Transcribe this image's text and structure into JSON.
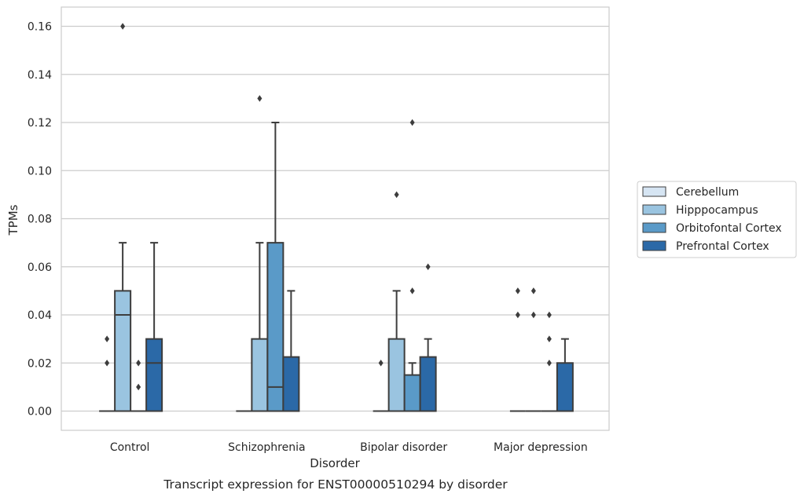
{
  "chart_data": {
    "type": "box",
    "caption": "Transcript expression for ENST00000510294 by disorder",
    "xlabel": "Disorder",
    "ylabel": "TPMs",
    "ylim": [
      -0.008,
      0.168
    ],
    "yticks": [
      0.0,
      0.02,
      0.04,
      0.06,
      0.08,
      0.1,
      0.12,
      0.14,
      0.16
    ],
    "ytick_labels": [
      "0.00",
      "0.02",
      "0.04",
      "0.06",
      "0.08",
      "0.10",
      "0.12",
      "0.14",
      "0.16"
    ],
    "grid": "horizontal",
    "legend_position": "right",
    "categories": [
      "Control",
      "Schizophrenia",
      "Bipolar disorder",
      "Major depression"
    ],
    "series": [
      {
        "name": "Cerebellum",
        "color": "#d6e5f3",
        "boxes": [
          {
            "min": 0,
            "q1": 0,
            "median": 0,
            "q3": 0,
            "max": 0,
            "outliers": []
          },
          {
            "min": 0,
            "q1": 0,
            "median": 0,
            "q3": 0,
            "max": 0,
            "outliers": []
          },
          {
            "min": 0,
            "q1": 0,
            "median": 0,
            "q3": 0,
            "max": 0,
            "outliers": []
          },
          {
            "min": 0,
            "q1": 0,
            "median": 0,
            "q3": 0,
            "max": 0,
            "outliers": [
              0.05,
              0.04
            ]
          }
        ]
      },
      {
        "name": "Hipppocampus",
        "color": "#9ac4e0",
        "boxes": [
          {
            "min": 0,
            "q1": 0,
            "median": 0.04,
            "q3": 0.05,
            "max": 0.07,
            "outliers": [
              0.16
            ]
          },
          {
            "min": 0,
            "q1": 0,
            "median": 0,
            "q3": 0.03,
            "max": 0.07,
            "outliers": [
              0.13
            ]
          },
          {
            "min": 0,
            "q1": 0,
            "median": 0,
            "q3": 0.03,
            "max": 0.05,
            "outliers": [
              0.09
            ]
          },
          {
            "min": 0,
            "q1": 0,
            "median": 0,
            "q3": 0,
            "max": 0,
            "outliers": [
              0.05,
              0.04
            ]
          }
        ]
      },
      {
        "name": "Orbitofontal Cortex",
        "color": "#5a9ac8",
        "boxes": [
          {
            "min": 0,
            "q1": 0,
            "median": 0,
            "q3": 0,
            "max": 0,
            "outliers": [
              0.02,
              0.01
            ]
          },
          {
            "min": 0,
            "q1": 0,
            "median": 0.01,
            "q3": 0.07,
            "max": 0.12,
            "outliers": []
          },
          {
            "min": 0,
            "q1": 0,
            "median": 0,
            "q3": 0.015,
            "max": 0.02,
            "outliers": [
              0.12,
              0.05
            ]
          },
          {
            "min": 0,
            "q1": 0,
            "median": 0,
            "q3": 0,
            "max": 0,
            "outliers": [
              0.04,
              0.03,
              0.02
            ]
          }
        ]
      },
      {
        "name": "Prefrontal Cortex",
        "color": "#2b69a7",
        "boxes": [
          {
            "min": 0,
            "q1": 0,
            "median": 0.02,
            "q3": 0.03,
            "max": 0.07,
            "outliers": []
          },
          {
            "min": 0,
            "q1": 0,
            "median": 0,
            "q3": 0.0225,
            "max": 0.05,
            "outliers": []
          },
          {
            "min": 0,
            "q1": 0,
            "median": 0,
            "q3": 0.0225,
            "max": 0.03,
            "outliers": [
              0.06
            ]
          },
          {
            "min": 0,
            "q1": 0,
            "median": 0,
            "q3": 0.02,
            "max": 0.03,
            "outliers": []
          }
        ]
      }
    ],
    "extra_outliers": [
      {
        "category": 0,
        "x_series": 0,
        "values": [
          0.03,
          0.02
        ]
      },
      {
        "category": 2,
        "x_series": 0,
        "values": [
          0.02
        ]
      }
    ]
  }
}
